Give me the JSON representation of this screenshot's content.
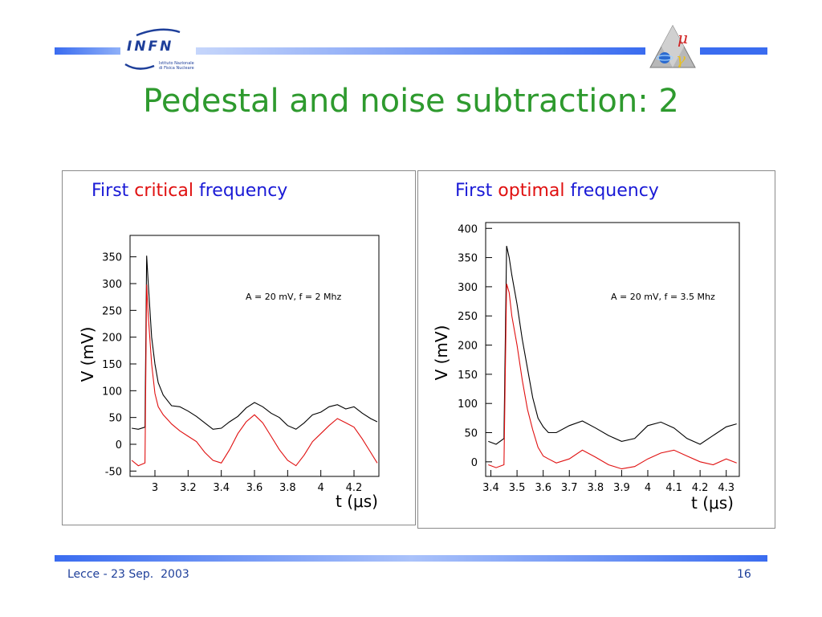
{
  "header": {
    "logo_text": "INFN",
    "logo_subtext_line1": "Istituto Nazionale",
    "logo_subtext_line2": "di Fisica Nucleare"
  },
  "title": "Pedestal and noise subtraction: 2",
  "colors": {
    "title": "#2e9a2e",
    "caption": "#1a1ad6",
    "highlight": "#e01010",
    "bars": "#3a6cf0"
  },
  "panels": [
    {
      "caption_start": "First ",
      "caption_highlight": "critical",
      "caption_end": " frequency",
      "annotation": "A = 20 mV, f = 2 Mhz",
      "ylabel": "V (mV)",
      "xlabel": "t (μs)"
    },
    {
      "caption_start": "First ",
      "caption_highlight": "optimal",
      "caption_end": " frequency",
      "annotation": "A = 20 mV, f = 3.5 Mhz",
      "ylabel": "V (mV)",
      "xlabel": "t (μs)"
    }
  ],
  "chart_data": [
    {
      "type": "line",
      "xlim": [
        2.85,
        4.35
      ],
      "ylim": [
        -60,
        390
      ],
      "yticks": [
        -50,
        0,
        50,
        100,
        150,
        200,
        250,
        300,
        350
      ],
      "ytick_labels": [
        "-50",
        "0",
        "50",
        "100",
        "150",
        "200",
        "250",
        "300",
        "350"
      ],
      "xticks": [
        3.0,
        3.2,
        3.4,
        3.6,
        3.8,
        4.0,
        4.2
      ],
      "xtick_labels": [
        "3",
        "3.2",
        "3.4",
        "3.6",
        "3.8",
        "4",
        "4.2"
      ],
      "series": [
        {
          "color": "#000000",
          "x": [
            2.86,
            2.9,
            2.94,
            2.95,
            2.96,
            2.98,
            3.0,
            3.02,
            3.05,
            3.08,
            3.1,
            3.15,
            3.2,
            3.25,
            3.3,
            3.35,
            3.4,
            3.45,
            3.5,
            3.55,
            3.6,
            3.65,
            3.7,
            3.75,
            3.8,
            3.85,
            3.9,
            3.95,
            4.0,
            4.05,
            4.1,
            4.15,
            4.2,
            4.25,
            4.3,
            4.34
          ],
          "y": [
            30,
            28,
            32,
            352,
            300,
            200,
            150,
            115,
            92,
            80,
            72,
            70,
            62,
            52,
            40,
            28,
            30,
            42,
            52,
            68,
            78,
            70,
            58,
            50,
            35,
            28,
            40,
            55,
            60,
            70,
            74,
            66,
            70,
            58,
            48,
            42
          ]
        },
        {
          "color": "#e01010",
          "x": [
            2.86,
            2.9,
            2.94,
            2.95,
            2.96,
            2.98,
            3.0,
            3.02,
            3.05,
            3.08,
            3.1,
            3.15,
            3.2,
            3.25,
            3.3,
            3.35,
            3.4,
            3.45,
            3.5,
            3.55,
            3.6,
            3.65,
            3.7,
            3.75,
            3.8,
            3.85,
            3.9,
            3.95,
            4.0,
            4.05,
            4.1,
            4.15,
            4.2,
            4.25,
            4.3,
            4.34
          ],
          "y": [
            -30,
            -40,
            -35,
            298,
            240,
            150,
            95,
            70,
            55,
            45,
            38,
            25,
            15,
            5,
            -15,
            -30,
            -35,
            -10,
            20,
            42,
            55,
            40,
            15,
            -10,
            -30,
            -40,
            -20,
            5,
            20,
            35,
            48,
            40,
            32,
            10,
            -15,
            -35
          ]
        }
      ]
    },
    {
      "type": "line",
      "xlim": [
        3.38,
        4.35
      ],
      "ylim": [
        -25,
        410
      ],
      "yticks": [
        0,
        50,
        100,
        150,
        200,
        250,
        300,
        350,
        400
      ],
      "ytick_labels": [
        "0",
        "50",
        "100",
        "150",
        "200",
        "250",
        "300",
        "350",
        "400"
      ],
      "xticks": [
        3.4,
        3.5,
        3.6,
        3.7,
        3.8,
        3.9,
        4.0,
        4.1,
        4.2,
        4.3
      ],
      "xtick_labels": [
        "3.4",
        "3.5",
        "3.6",
        "3.7",
        "3.8",
        "3.9",
        "4",
        "4.1",
        "4.2",
        "4.3"
      ],
      "series": [
        {
          "color": "#000000",
          "x": [
            3.39,
            3.42,
            3.45,
            3.46,
            3.47,
            3.48,
            3.5,
            3.52,
            3.54,
            3.56,
            3.58,
            3.6,
            3.62,
            3.65,
            3.7,
            3.75,
            3.8,
            3.85,
            3.9,
            3.95,
            4.0,
            4.05,
            4.1,
            4.15,
            4.2,
            4.25,
            4.3,
            4.34
          ],
          "y": [
            35,
            30,
            40,
            370,
            350,
            320,
            270,
            210,
            160,
            110,
            75,
            60,
            50,
            50,
            62,
            70,
            58,
            45,
            35,
            40,
            62,
            68,
            58,
            40,
            30,
            45,
            60,
            65
          ]
        },
        {
          "color": "#e01010",
          "x": [
            3.39,
            3.42,
            3.45,
            3.46,
            3.47,
            3.48,
            3.5,
            3.52,
            3.54,
            3.56,
            3.58,
            3.6,
            3.62,
            3.65,
            3.7,
            3.75,
            3.8,
            3.85,
            3.9,
            3.95,
            4.0,
            4.05,
            4.1,
            4.15,
            4.2,
            4.25,
            4.3,
            4.34
          ],
          "y": [
            -5,
            -10,
            -5,
            305,
            290,
            250,
            200,
            140,
            90,
            55,
            25,
            10,
            5,
            -2,
            5,
            20,
            8,
            -5,
            -12,
            -8,
            5,
            15,
            20,
            10,
            0,
            -5,
            5,
            -2
          ]
        }
      ]
    }
  ]
}
